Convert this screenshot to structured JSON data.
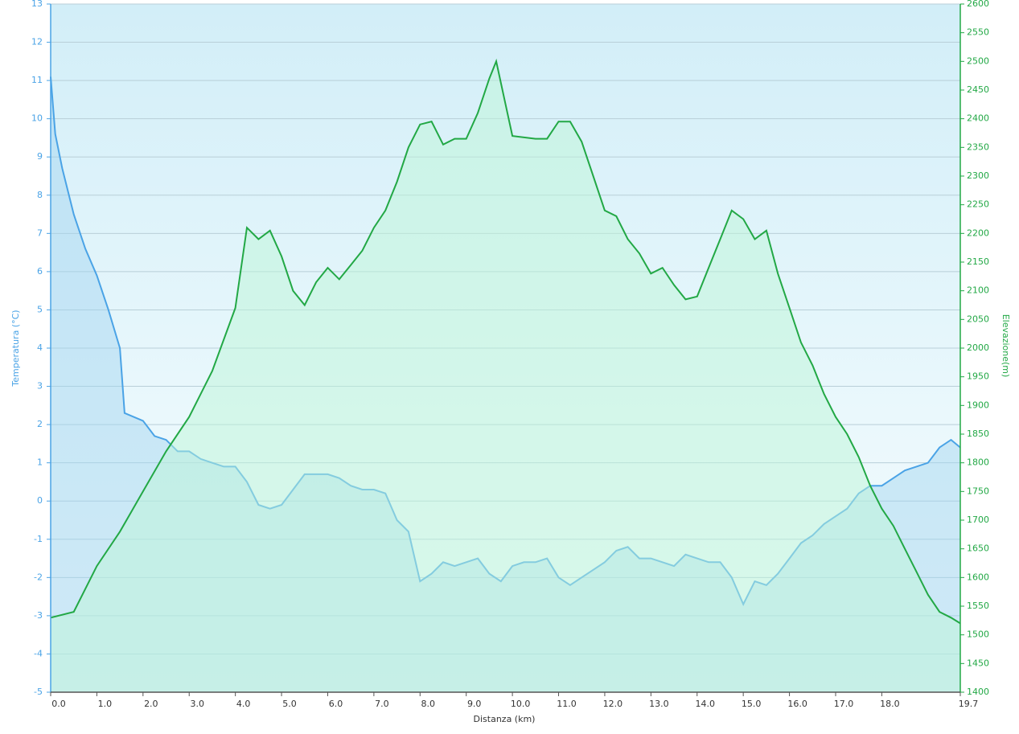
{
  "chart_data": {
    "type": "line",
    "x_label": "Distanza  (km)",
    "y_label": "Temperatura (°C)",
    "y2_label": "Elevazione(m)",
    "xlim": [
      0,
      19.7
    ],
    "ylim": [
      -5,
      13
    ],
    "y2lim": [
      1400,
      2600
    ],
    "xticks": [
      {
        "value": 0,
        "label": "0.0"
      },
      {
        "value": 1,
        "label": "1.0"
      },
      {
        "value": 2,
        "label": "2.0"
      },
      {
        "value": 3,
        "label": "3.0"
      },
      {
        "value": 4,
        "label": "4.0"
      },
      {
        "value": 5,
        "label": "5.0"
      },
      {
        "value": 6,
        "label": "6.0"
      },
      {
        "value": 7,
        "label": "7.0"
      },
      {
        "value": 8,
        "label": "8.0"
      },
      {
        "value": 9,
        "label": "9.0"
      },
      {
        "value": 10,
        "label": "10.0"
      },
      {
        "value": 11,
        "label": "11.0"
      },
      {
        "value": 12,
        "label": "12.0"
      },
      {
        "value": 13,
        "label": "13.0"
      },
      {
        "value": 14,
        "label": "14.0"
      },
      {
        "value": 15,
        "label": "15.0"
      },
      {
        "value": 16,
        "label": "16.0"
      },
      {
        "value": 17,
        "label": "17.0"
      },
      {
        "value": 18,
        "label": "18.0"
      },
      {
        "value": 19.7,
        "label": "19.7"
      }
    ],
    "yticks": [
      -5,
      -4,
      -3,
      -2,
      -1,
      0,
      1,
      2,
      3,
      4,
      5,
      6,
      7,
      8,
      9,
      10,
      11,
      12,
      13
    ],
    "y2ticks": [
      1400,
      1450,
      1500,
      1550,
      1600,
      1650,
      1700,
      1750,
      1800,
      1850,
      1900,
      1950,
      2000,
      2050,
      2100,
      2150,
      2200,
      2250,
      2300,
      2350,
      2400,
      2450,
      2500,
      2550,
      2600
    ],
    "grid": true,
    "series": [
      {
        "name": "Temperatura",
        "color": "#4aa3e6",
        "axis": "y",
        "x": [
          0,
          0.1,
          0.25,
          0.5,
          0.75,
          1.0,
          1.25,
          1.5,
          1.6,
          2.0,
          2.25,
          2.5,
          2.75,
          3.0,
          3.25,
          3.5,
          3.75,
          4.0,
          4.25,
          4.5,
          4.75,
          5.0,
          5.25,
          5.5,
          5.75,
          6.0,
          6.25,
          6.5,
          6.75,
          7.0,
          7.25,
          7.5,
          7.75,
          8.0,
          8.25,
          8.5,
          8.75,
          9.0,
          9.25,
          9.5,
          9.75,
          10.0,
          10.25,
          10.5,
          10.75,
          11.0,
          11.25,
          11.5,
          11.75,
          12.0,
          12.25,
          12.5,
          12.75,
          13.0,
          13.25,
          13.5,
          13.75,
          14.0,
          14.25,
          14.5,
          14.75,
          15.0,
          15.25,
          15.5,
          15.75,
          16.0,
          16.25,
          16.5,
          16.75,
          17.0,
          17.25,
          17.5,
          17.75,
          18.0,
          18.25,
          18.5,
          18.75,
          19.0,
          19.25,
          19.5,
          19.7
        ],
        "values": [
          11.1,
          9.6,
          8.7,
          7.5,
          6.6,
          5.9,
          5.0,
          4.0,
          2.3,
          2.1,
          1.7,
          1.6,
          1.3,
          1.3,
          1.1,
          1.0,
          0.9,
          0.9,
          0.5,
          -0.1,
          -0.2,
          -0.1,
          0.3,
          0.7,
          0.7,
          0.7,
          0.6,
          0.4,
          0.3,
          0.3,
          0.2,
          -0.5,
          -0.8,
          -2.1,
          -1.9,
          -1.6,
          -1.7,
          -1.6,
          -1.5,
          -1.9,
          -2.1,
          -1.7,
          -1.6,
          -1.6,
          -1.5,
          -2.0,
          -2.2,
          -2.0,
          -1.8,
          -1.6,
          -1.3,
          -1.2,
          -1.5,
          -1.5,
          -1.6,
          -1.7,
          -1.4,
          -1.5,
          -1.6,
          -1.6,
          -2.0,
          -2.7,
          -2.1,
          -2.2,
          -1.9,
          -1.5,
          -1.1,
          -0.9,
          -0.6,
          -0.4,
          -0.2,
          0.2,
          0.4,
          0.4,
          0.6,
          0.8,
          0.9,
          1.0,
          1.4,
          1.6,
          1.4
        ]
      },
      {
        "name": "Elevazione",
        "color": "#22a845",
        "axis": "y2",
        "x": [
          0,
          0.5,
          1.0,
          1.5,
          2.0,
          2.5,
          3.0,
          3.5,
          4.0,
          4.25,
          4.5,
          4.75,
          5.0,
          5.25,
          5.5,
          5.75,
          6.0,
          6.25,
          6.5,
          6.75,
          7.0,
          7.25,
          7.5,
          7.75,
          8.0,
          8.25,
          8.5,
          8.75,
          9.0,
          9.25,
          9.5,
          9.65,
          10.0,
          10.5,
          10.75,
          11.0,
          11.25,
          11.5,
          11.75,
          12.0,
          12.25,
          12.5,
          12.75,
          13.0,
          13.25,
          13.5,
          13.75,
          14.0,
          14.25,
          14.5,
          14.75,
          15.0,
          15.25,
          15.5,
          15.75,
          16.0,
          16.25,
          16.5,
          16.75,
          17.0,
          17.25,
          17.5,
          17.75,
          18.0,
          18.25,
          18.5,
          18.75,
          19.0,
          19.25,
          19.5,
          19.7
        ],
        "values": [
          1530,
          1540,
          1620,
          1680,
          1750,
          1820,
          1880,
          1960,
          2070,
          2210,
          2190,
          2205,
          2160,
          2100,
          2075,
          2115,
          2140,
          2120,
          2145,
          2170,
          2210,
          2240,
          2290,
          2350,
          2390,
          2395,
          2355,
          2365,
          2365,
          2410,
          2470,
          2500,
          2370,
          2365,
          2365,
          2395,
          2395,
          2360,
          2300,
          2240,
          2230,
          2190,
          2165,
          2130,
          2140,
          2110,
          2085,
          2090,
          2140,
          2190,
          2240,
          2225,
          2190,
          2205,
          2130,
          2070,
          2010,
          1970,
          1920,
          1880,
          1850,
          1810,
          1760,
          1720,
          1690,
          1650,
          1610,
          1570,
          1540,
          1530,
          1520
        ]
      }
    ]
  }
}
